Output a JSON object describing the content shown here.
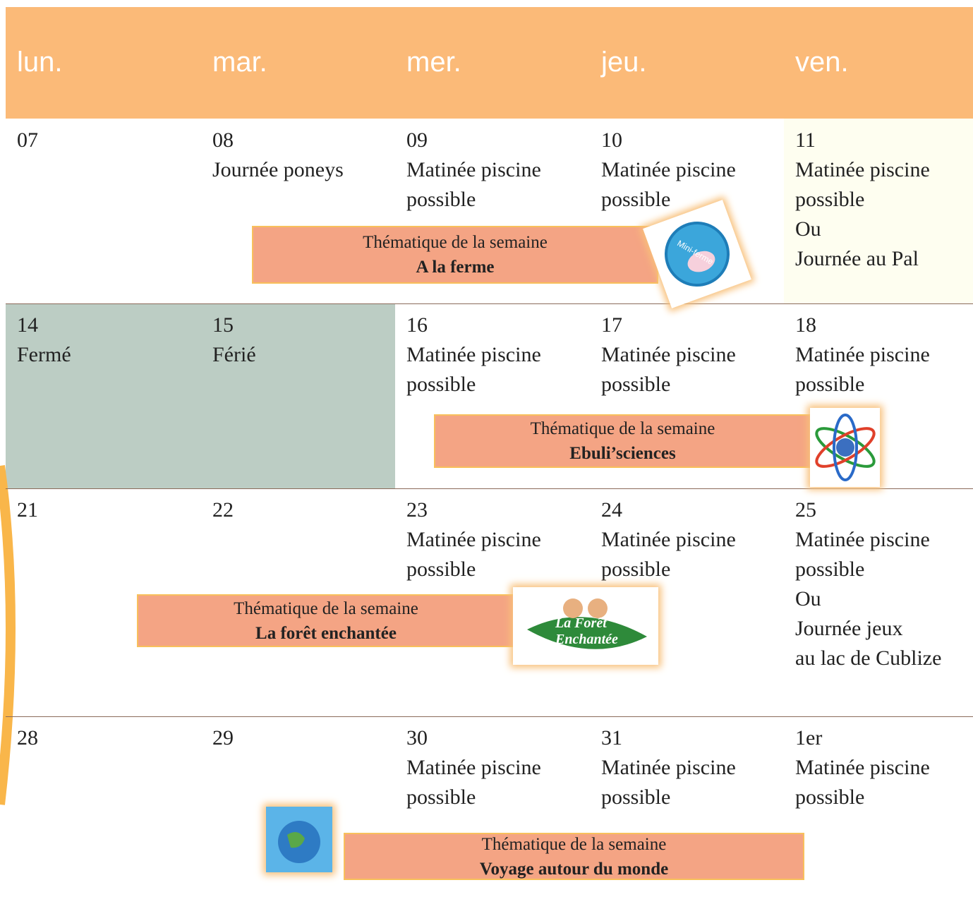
{
  "header": {
    "days": [
      "lun.",
      "mar.",
      "mer.",
      "jeu.",
      "ven."
    ]
  },
  "weeks": [
    {
      "cells": [
        {
          "lines": [
            "07"
          ]
        },
        {
          "lines": [
            "08",
            "Journée poneys"
          ]
        },
        {
          "lines": [
            "09",
            "Matinée piscine",
            "possible"
          ]
        },
        {
          "lines": [
            "10",
            "Matinée piscine",
            "possible"
          ]
        },
        {
          "lines": [
            "11",
            "Matinée piscine",
            "possible",
            "Ou",
            "Journée au Pal"
          ]
        }
      ],
      "theme": {
        "label": "Thématique de la semaine",
        "title": "A la ferme",
        "logo": "Mini-ferme"
      }
    },
    {
      "cells": [
        {
          "lines": [
            "14",
            "Fermé"
          ]
        },
        {
          "lines": [
            "15",
            "Férié"
          ]
        },
        {
          "lines": [
            "16",
            "Matinée piscine",
            "possible"
          ]
        },
        {
          "lines": [
            "17",
            "Matinée piscine",
            "possible"
          ]
        },
        {
          "lines": [
            "18",
            "Matinée piscine",
            "possible"
          ]
        }
      ],
      "theme": {
        "label": "Thématique de la semaine",
        "title": "Ebuli’sciences"
      }
    },
    {
      "cells": [
        {
          "lines": [
            "21"
          ]
        },
        {
          "lines": [
            "22"
          ]
        },
        {
          "lines": [
            "23",
            "Matinée piscine",
            "possible"
          ]
        },
        {
          "lines": [
            "24",
            "Matinée piscine",
            "possible"
          ]
        },
        {
          "lines": [
            "25",
            "Matinée piscine",
            "possible",
            "Ou",
            "Journée jeux",
            "au lac de Cublize"
          ]
        }
      ],
      "theme": {
        "label": "Thématique de la semaine",
        "title": "La forêt enchantée",
        "logo": "La Forêt Enchantée"
      }
    },
    {
      "cells": [
        {
          "lines": [
            "28"
          ]
        },
        {
          "lines": [
            "29"
          ]
        },
        {
          "lines": [
            "30",
            "Matinée piscine",
            "possible"
          ]
        },
        {
          "lines": [
            "31",
            "Matinée piscine",
            "possible"
          ]
        },
        {
          "lines": [
            "1er",
            "Matinée piscine",
            "possible"
          ]
        }
      ],
      "theme": {
        "label": "Thématique de la semaine",
        "title": "Voyage autour du monde"
      }
    }
  ]
}
